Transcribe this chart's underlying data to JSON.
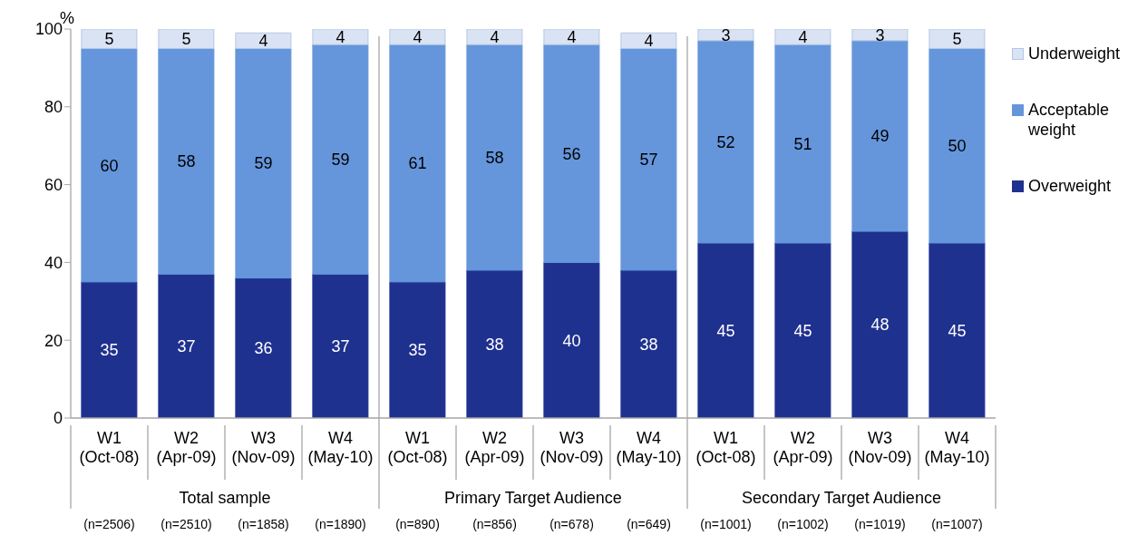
{
  "chart_data": {
    "type": "bar",
    "stacked": true,
    "ylabel": "%",
    "categories": [
      "W1 (Oct-08)",
      "W2 (Apr-09)",
      "W3 (Nov-09)",
      "W4 (May-10)",
      "W1 (Oct-08)",
      "W2 (Apr-09)",
      "W3 (Nov-09)",
      "W4 (May-10)",
      "W1 (Oct-08)",
      "W2 (Apr-09)",
      "W3 (Nov-09)",
      "W4 (May-10)"
    ],
    "series": [
      {
        "name": "Overweight",
        "color": "#1f318f",
        "values": [
          35,
          37,
          36,
          37,
          35,
          38,
          40,
          38,
          45,
          45,
          48,
          45
        ]
      },
      {
        "name": "Acceptable weight",
        "color": "#6596db",
        "values": [
          60,
          58,
          59,
          59,
          61,
          58,
          56,
          57,
          52,
          51,
          49,
          50
        ]
      },
      {
        "name": "Underweight",
        "color": "#dae3f3",
        "values": [
          5,
          5,
          4,
          4,
          4,
          4,
          4,
          4,
          3,
          4,
          3,
          5
        ]
      }
    ],
    "ylim": [
      0,
      100
    ],
    "yticks": [
      0,
      20,
      40,
      60,
      80,
      100
    ],
    "grid": false,
    "legend": "right",
    "data_labels": true,
    "annotations": [
      "Total sample",
      "Primary Target Audience",
      "Secondary Target Audience",
      "(n=2506)",
      "(n=2510)",
      "(n=1858)",
      "(n=1890)",
      "(n=890)",
      "(n=856)",
      "(n=678)",
      "(n=649)",
      "(n=1001)",
      "(n=1002)",
      "(n=1019)",
      "(n=1007)"
    ]
  }
}
